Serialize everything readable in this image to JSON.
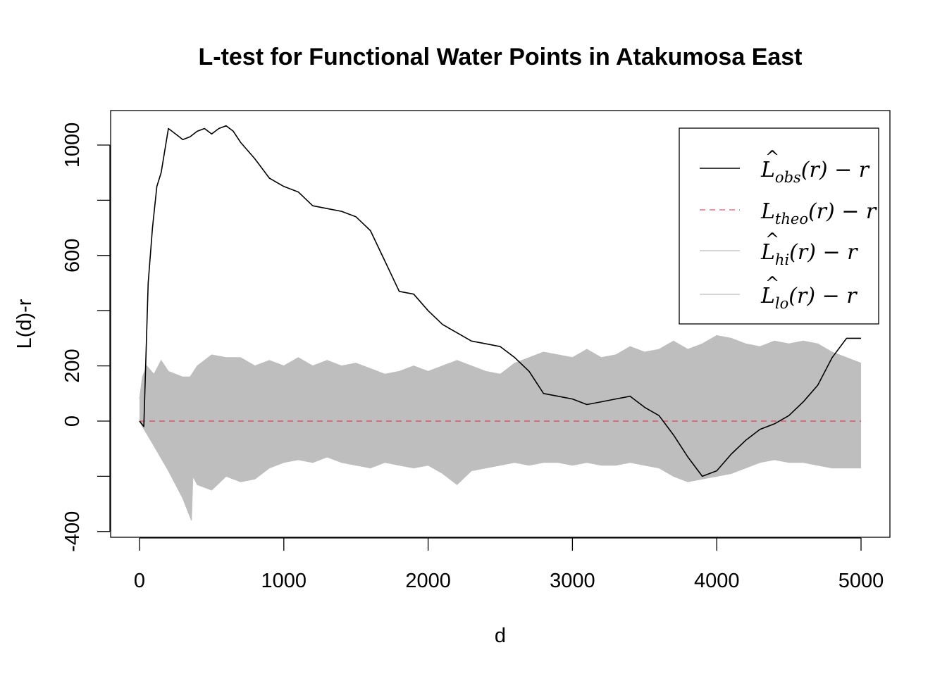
{
  "chart_data": {
    "type": "line",
    "title": "L-test for Functional Water Points in Atakumosa East",
    "xlabel": "d",
    "ylabel": "L(d)-r",
    "xlim": [
      0,
      5000
    ],
    "ylim": [
      -400,
      1100
    ],
    "x_ticks": [
      0,
      1000,
      2000,
      3000,
      4000,
      5000
    ],
    "y_ticks": [
      -400,
      0,
      200,
      600,
      1000
    ],
    "y_minor_ticks": [
      -200,
      400,
      800
    ],
    "grid": false,
    "legend_position": "top-right",
    "series": [
      {
        "name": "L̂obs(r) − r",
        "legend": {
          "main": "L",
          "hat": "^",
          "sub": "obs",
          "rest": "(r) − r"
        },
        "color": "#000000",
        "style": "solid",
        "x": [
          0,
          30,
          60,
          90,
          120,
          150,
          200,
          250,
          300,
          350,
          400,
          450,
          500,
          550,
          600,
          650,
          700,
          800,
          900,
          1000,
          1100,
          1200,
          1300,
          1400,
          1500,
          1600,
          1700,
          1800,
          1900,
          2000,
          2100,
          2200,
          2300,
          2400,
          2500,
          2600,
          2700,
          2800,
          2900,
          3000,
          3100,
          3200,
          3300,
          3400,
          3500,
          3600,
          3700,
          3800,
          3900,
          4000,
          4100,
          4200,
          4300,
          4400,
          4500,
          4600,
          4700,
          4800,
          4900,
          5000
        ],
        "y": [
          0,
          -20,
          500,
          700,
          850,
          900,
          1060,
          1040,
          1020,
          1030,
          1050,
          1060,
          1040,
          1060,
          1070,
          1050,
          1010,
          950,
          880,
          850,
          830,
          780,
          770,
          760,
          740,
          690,
          580,
          470,
          460,
          400,
          350,
          320,
          290,
          280,
          270,
          230,
          180,
          100,
          90,
          80,
          60,
          70,
          80,
          90,
          50,
          20,
          -50,
          -130,
          -200,
          -180,
          -120,
          -70,
          -30,
          -10,
          20,
          70,
          130,
          230,
          300,
          300
        ]
      },
      {
        "name": "Ltheo(r) − r",
        "legend": {
          "main": "L",
          "hat": "",
          "sub": "theo",
          "rest": "(r) − r"
        },
        "color": "#df536b",
        "style": "dashed",
        "x": [
          0,
          5000
        ],
        "y": [
          0,
          0
        ]
      },
      {
        "name": "L̂hi(r) − r",
        "legend": {
          "main": "L",
          "hat": "^",
          "sub": "hi",
          "rest": "(r) − r"
        },
        "color": "#bebebe",
        "style": "envelope-upper",
        "x": [
          0,
          20,
          50,
          100,
          150,
          200,
          250,
          300,
          350,
          400,
          450,
          500,
          600,
          700,
          800,
          900,
          1000,
          1100,
          1200,
          1300,
          1400,
          1500,
          1600,
          1700,
          1800,
          1900,
          2000,
          2100,
          2200,
          2300,
          2400,
          2500,
          2600,
          2700,
          2800,
          2900,
          3000,
          3100,
          3200,
          3300,
          3400,
          3500,
          3600,
          3700,
          3800,
          3900,
          4000,
          4100,
          4200,
          4300,
          4400,
          4500,
          4600,
          4700,
          4800,
          4900,
          5000
        ],
        "y": [
          80,
          160,
          200,
          170,
          220,
          180,
          170,
          160,
          160,
          200,
          220,
          240,
          230,
          230,
          200,
          220,
          200,
          230,
          200,
          220,
          200,
          210,
          190,
          170,
          180,
          200,
          180,
          200,
          220,
          200,
          180,
          170,
          210,
          230,
          250,
          240,
          230,
          260,
          230,
          240,
          270,
          250,
          260,
          290,
          260,
          280,
          310,
          300,
          280,
          270,
          290,
          280,
          290,
          280,
          250,
          230,
          210
        ]
      },
      {
        "name": "L̂lo(r) − r",
        "legend": {
          "main": "L",
          "hat": "^",
          "sub": "lo",
          "rest": "(r) − r"
        },
        "color": "#bebebe",
        "style": "envelope-lower",
        "x": [
          0,
          20,
          100,
          200,
          300,
          360,
          370,
          400,
          450,
          500,
          600,
          700,
          800,
          900,
          1000,
          1100,
          1200,
          1300,
          1400,
          1500,
          1600,
          1700,
          1800,
          1900,
          2000,
          2100,
          2200,
          2300,
          2400,
          2500,
          2600,
          2700,
          2800,
          2900,
          3000,
          3100,
          3200,
          3300,
          3400,
          3500,
          3600,
          3700,
          3800,
          3900,
          4000,
          4100,
          4200,
          4300,
          4400,
          4500,
          4600,
          4700,
          4800,
          4900,
          5000
        ],
        "y": [
          0,
          -20,
          -90,
          -180,
          -280,
          -360,
          -200,
          -230,
          -240,
          -250,
          -200,
          -220,
          -210,
          -170,
          -150,
          -140,
          -150,
          -130,
          -150,
          -160,
          -170,
          -150,
          -160,
          -170,
          -160,
          -190,
          -230,
          -180,
          -170,
          -160,
          -150,
          -160,
          -150,
          -150,
          -160,
          -150,
          -160,
          -160,
          -150,
          -160,
          -170,
          -200,
          -220,
          -210,
          -200,
          -190,
          -170,
          -150,
          -140,
          -150,
          -150,
          -160,
          -170,
          -170,
          -170
        ]
      }
    ]
  }
}
